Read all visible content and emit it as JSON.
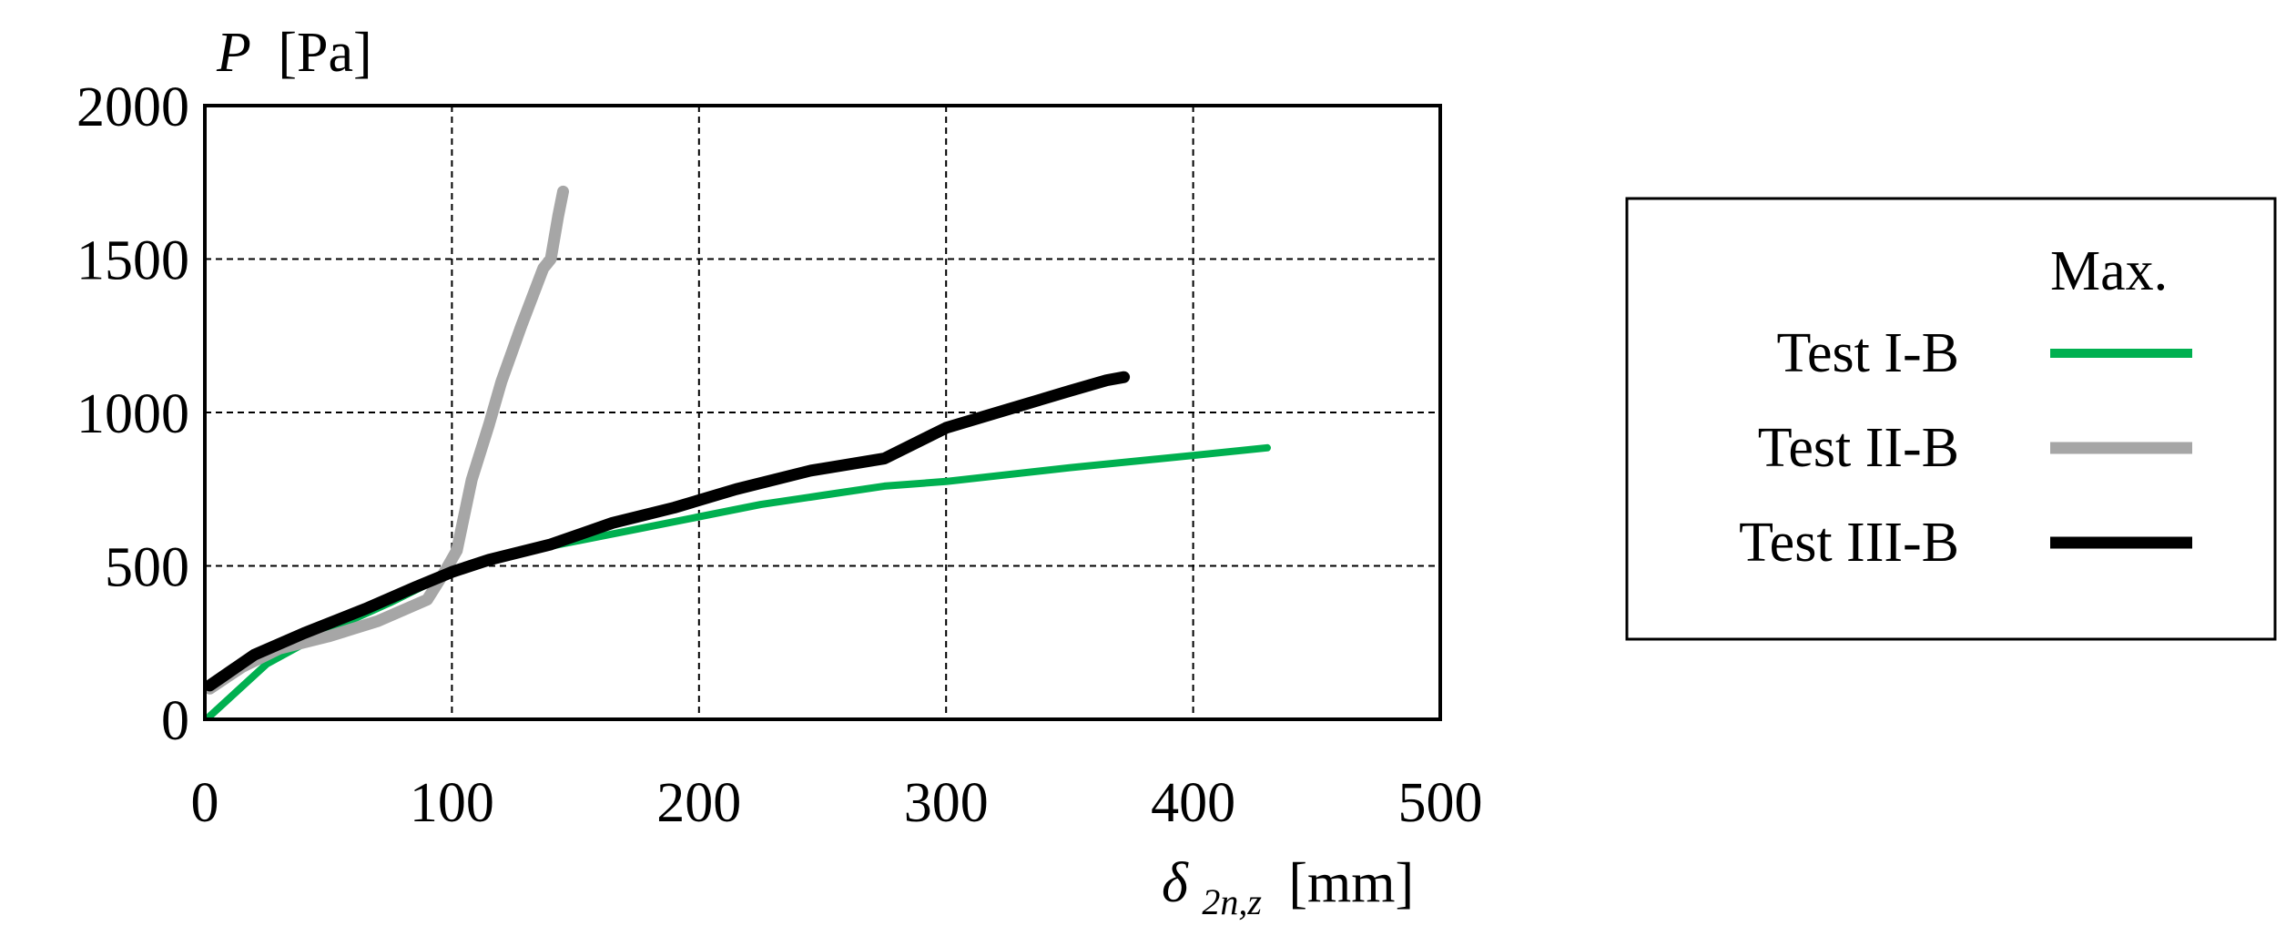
{
  "chart_data": {
    "type": "line",
    "ylabel": {
      "symbol": "P",
      "unit": "[Pa]"
    },
    "xlabel": {
      "symbol": "δ",
      "subscript": "2n,z",
      "unit": "[mm]"
    },
    "xlim": [
      0,
      500
    ],
    "ylim": [
      0,
      2000
    ],
    "xticks": [
      "0",
      "100",
      "200",
      "300",
      "400",
      "500"
    ],
    "yticks": [
      "0",
      "500",
      "1000",
      "1500",
      "2000"
    ],
    "grid": "dashed",
    "legend": {
      "placement": "right",
      "header": "Max.",
      "entries": [
        "Test I-B",
        "Test II-B",
        "Test III-B"
      ]
    },
    "series": [
      {
        "name": "Test I-B",
        "color": "#00b050",
        "points": [
          [
            2,
            10
          ],
          [
            25,
            180
          ],
          [
            50,
            290
          ],
          [
            75,
            380
          ],
          [
            100,
            480
          ],
          [
            125,
            540
          ],
          [
            150,
            580
          ],
          [
            175,
            620
          ],
          [
            200,
            660
          ],
          [
            225,
            700
          ],
          [
            250,
            730
          ],
          [
            275,
            760
          ],
          [
            300,
            775
          ],
          [
            350,
            820
          ],
          [
            400,
            860
          ],
          [
            430,
            885
          ]
        ]
      },
      {
        "name": "Test II-B",
        "color": "#a6a6a6",
        "points": [
          [
            2,
            100
          ],
          [
            15,
            170
          ],
          [
            30,
            230
          ],
          [
            50,
            270
          ],
          [
            70,
            320
          ],
          [
            90,
            390
          ],
          [
            97,
            480
          ],
          [
            102,
            550
          ],
          [
            108,
            780
          ],
          [
            115,
            960
          ],
          [
            120,
            1100
          ],
          [
            128,
            1280
          ],
          [
            137,
            1470
          ],
          [
            140,
            1500
          ],
          [
            143,
            1640
          ],
          [
            145,
            1720
          ]
        ]
      },
      {
        "name": "Test III-B",
        "color": "#000000",
        "points": [
          [
            2,
            110
          ],
          [
            20,
            210
          ],
          [
            40,
            280
          ],
          [
            65,
            360
          ],
          [
            85,
            430
          ],
          [
            100,
            480
          ],
          [
            115,
            520
          ],
          [
            140,
            570
          ],
          [
            165,
            640
          ],
          [
            190,
            690
          ],
          [
            215,
            750
          ],
          [
            245,
            810
          ],
          [
            275,
            850
          ],
          [
            300,
            950
          ],
          [
            325,
            1010
          ],
          [
            350,
            1070
          ],
          [
            365,
            1105
          ],
          [
            372,
            1115
          ]
        ]
      }
    ]
  }
}
